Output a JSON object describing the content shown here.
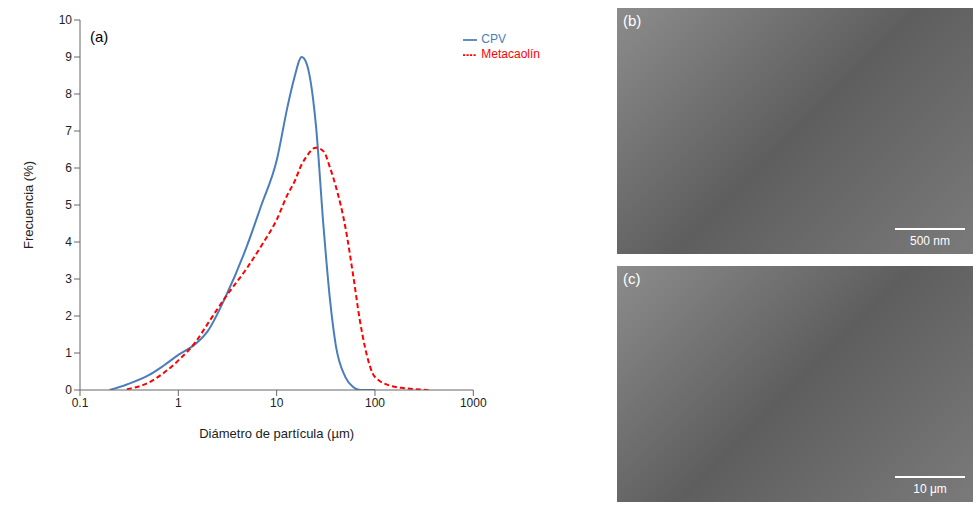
{
  "chart_data": {
    "type": "line",
    "annotations": [
      "(a)"
    ],
    "x_label": "Diámetro de partícula (µm)",
    "y_label": "Frecuencia (%)",
    "log": "x",
    "grid": false,
    "legend": "upper right",
    "xlim": [
      0.1,
      1000
    ],
    "xticks": [
      0.1,
      1,
      10,
      100,
      1000
    ],
    "ylim": [
      0,
      10
    ],
    "yticks": [
      0,
      1,
      2,
      3,
      4,
      5,
      6,
      7,
      8,
      9,
      10
    ],
    "x": [
      0.2,
      0.3,
      0.5,
      0.7,
      1,
      1.5,
      2,
      3,
      5,
      7,
      10,
      13,
      15,
      18,
      20,
      25,
      30,
      35,
      40,
      50,
      60,
      70,
      80,
      100,
      150,
      200,
      350
    ],
    "series": [
      {
        "name": "CPV",
        "color": "#4a7ebb",
        "line_style": "solid",
        "values": [
          0,
          0.15,
          0.4,
          0.65,
          0.95,
          1.25,
          1.6,
          2.5,
          3.9,
          5.0,
          6.2,
          7.7,
          8.4,
          9.0,
          8.85,
          7.2,
          4.4,
          2.4,
          1.2,
          0.35,
          0.08,
          0,
          0,
          0,
          null,
          null,
          null
        ]
      },
      {
        "name": "Metacaolín",
        "color": "#ff0000",
        "line_style": "dashed",
        "values": [
          null,
          0.02,
          0.2,
          0.45,
          0.8,
          1.3,
          1.8,
          2.5,
          3.3,
          3.9,
          4.6,
          5.3,
          5.6,
          6.1,
          6.3,
          6.55,
          6.45,
          6.0,
          5.5,
          4.4,
          3.1,
          1.9,
          1.1,
          0.35,
          0.1,
          0.05,
          0
        ]
      }
    ]
  },
  "images": [
    {
      "label": "(b)",
      "scale_bar": "500 nm"
    },
    {
      "label": "(c)",
      "scale_bar": "10 μm"
    }
  ]
}
